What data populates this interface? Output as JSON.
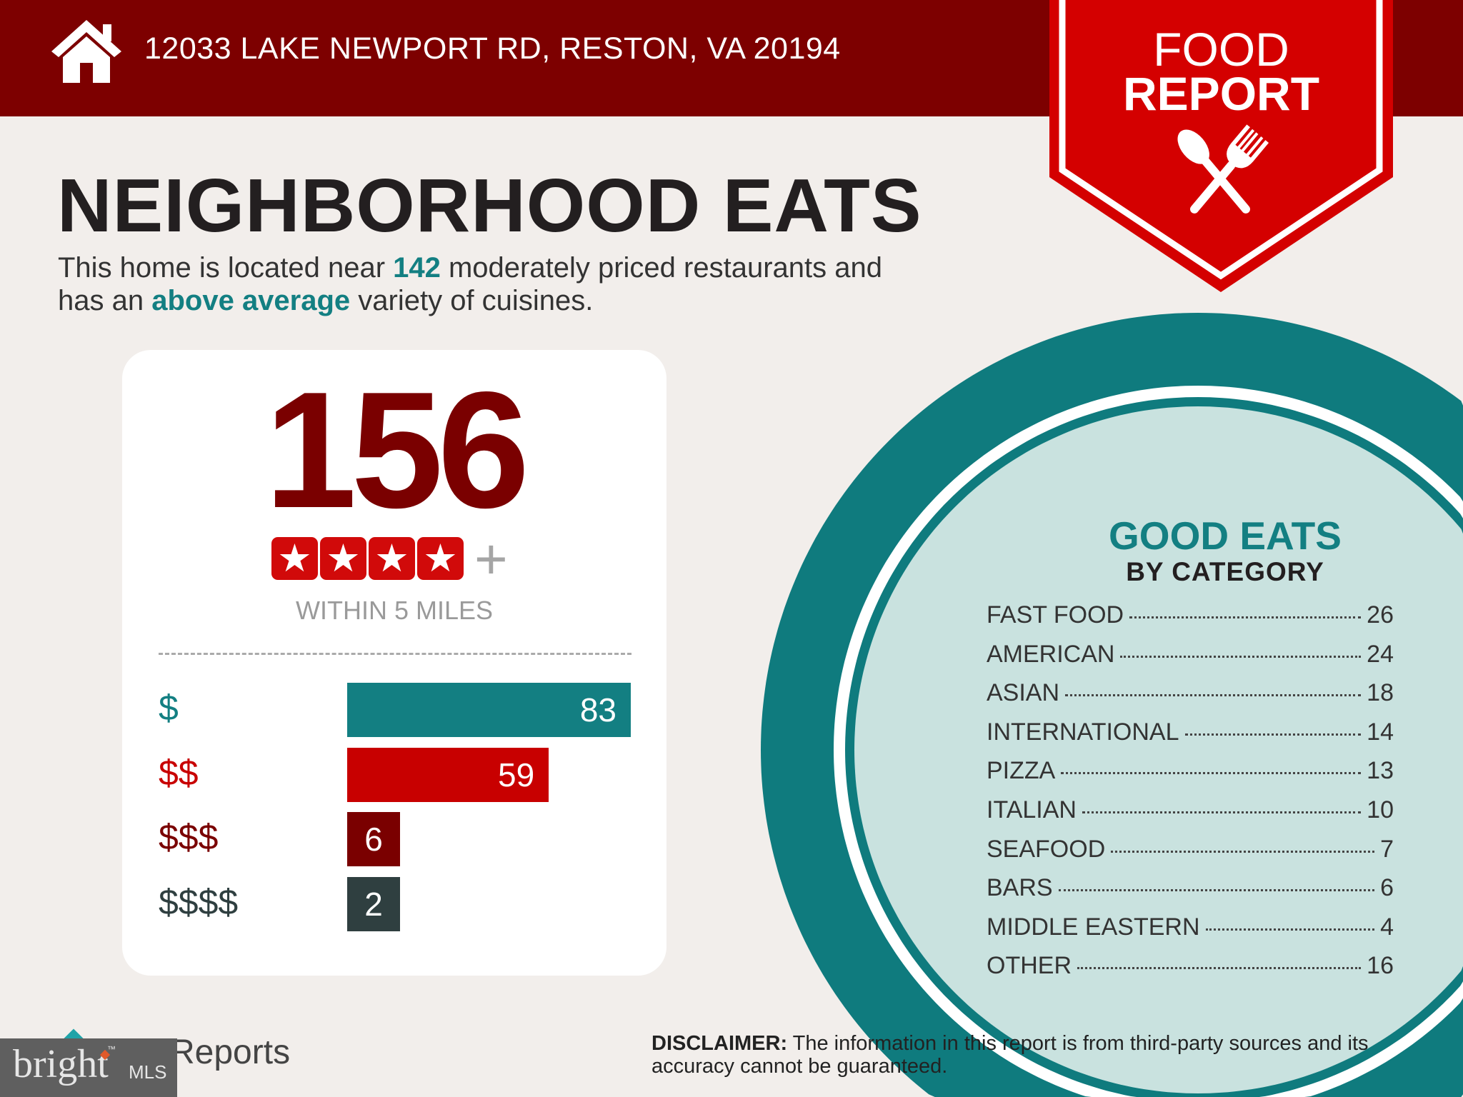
{
  "header": {
    "address": "12033 LAKE NEWPORT RD, RESTON, VA 20194",
    "icon": "house-icon"
  },
  "badge": {
    "line1": "FOOD",
    "line2": "REPORT",
    "icon": "fork-spoon-icon"
  },
  "title": "NEIGHBORHOOD EATS",
  "subtitle": {
    "part1": "This home is located near ",
    "count": "142",
    "part2": " moderately priced restaurants and",
    "part3": "has an ",
    "variety": "above average",
    "part4": " variety of cuisines."
  },
  "summary": {
    "total": "156",
    "rating_stars": 4,
    "plus": "+",
    "within": "WITHIN 5 MILES"
  },
  "chart_data": {
    "type": "bar",
    "orientation": "horizontal",
    "categories": [
      "$",
      "$$",
      "$$$",
      "$$$$"
    ],
    "values": [
      83,
      59,
      6,
      2
    ],
    "colors": [
      "#137f82",
      "#c80000",
      "#7a0000",
      "#2f3f40"
    ]
  },
  "good_eats": {
    "title": "GOOD EATS",
    "subtitle": "BY CATEGORY",
    "items": [
      {
        "label": "FAST FOOD",
        "value": "26"
      },
      {
        "label": "AMERICAN",
        "value": "24"
      },
      {
        "label": "ASIAN",
        "value": "18"
      },
      {
        "label": "INTERNATIONAL",
        "value": "14"
      },
      {
        "label": "PIZZA",
        "value": "13"
      },
      {
        "label": "ITALIAN",
        "value": "10"
      },
      {
        "label": "SEAFOOD",
        "value": "7"
      },
      {
        "label": "BARS",
        "value": "6"
      },
      {
        "label": "MIDDLE EASTERN",
        "value": "4"
      },
      {
        "label": "OTHER",
        "value": "16"
      }
    ]
  },
  "disclaimer": {
    "label": "DISCLAIMER:",
    "line1": " The information in this report is from third-party sources and its",
    "line2": "accuracy cannot be guaranteed."
  },
  "footer": {
    "reports": "Reports",
    "bright": "bright",
    "mls": "MLS",
    "tm": "™"
  },
  "colors": {
    "header": "#7d0000",
    "badge": "#d40000",
    "teal": "#137f82",
    "circle_fill": "#c9e2df",
    "background": "#f2eeeb"
  }
}
